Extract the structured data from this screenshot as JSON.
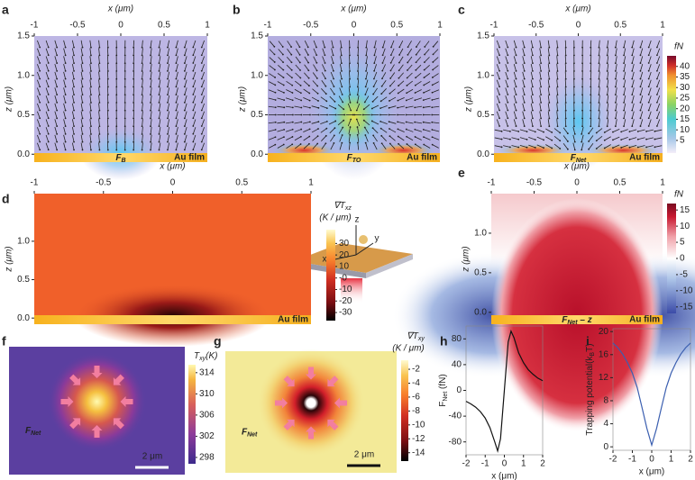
{
  "chart_data": [
    {
      "type": "heatmap",
      "label": "a",
      "xlabel": "x (μm)",
      "xlim": [
        -1,
        1
      ],
      "xticks": [
        -1,
        -0.5,
        0,
        0.5,
        1
      ],
      "ylabel": "z (μm)",
      "ylim": [
        -0.1,
        1.5
      ],
      "yticks": [
        {
          "value": 0,
          "label": "0.0"
        },
        0.5,
        {
          "value": 1,
          "label": "1.0"
        },
        1.5
      ],
      "annotation": {
        "main": "F",
        "sub": "B"
      },
      "film": "Au film"
    },
    {
      "type": "heatmap",
      "label": "b",
      "xlabel": "x (μm)",
      "xlim": [
        -1,
        1
      ],
      "xticks": [
        -1,
        -0.5,
        0,
        0.5,
        1
      ],
      "ylabel": "z (μm)",
      "ylim": [
        -0.1,
        1.5
      ],
      "yticks": [
        {
          "value": 0,
          "label": "0.0"
        },
        0.5,
        {
          "value": 1,
          "label": "1.0"
        },
        1.5
      ],
      "annotation": {
        "main": "F",
        "sub": "TO"
      },
      "film": "Au film"
    },
    {
      "type": "heatmap",
      "label": "c",
      "xlabel": "x (μm)",
      "xlim": [
        -1,
        1
      ],
      "xticks": [
        -1,
        -0.5,
        0,
        0.5,
        1
      ],
      "ylabel": "z (μm)",
      "ylim": [
        -0.1,
        1.5
      ],
      "yticks": [
        {
          "value": 0,
          "label": "0.0"
        },
        0.5,
        {
          "value": 1,
          "label": "1.0"
        },
        1.5
      ],
      "annotation": {
        "main": "F",
        "sub": "Net"
      },
      "film": "Au film",
      "clabel": "fN",
      "clim": [
        -1,
        45
      ],
      "cticks": [
        5,
        10,
        15,
        20,
        25,
        30,
        35,
        40
      ]
    },
    {
      "type": "heatmap",
      "label": "d",
      "xlabel": "x (μm)",
      "xlim": [
        -1,
        1
      ],
      "xticks": [
        -1,
        -0.5,
        0,
        0.5,
        1
      ],
      "ylabel": "z (μm)",
      "ylim": [
        -0.08,
        1.62
      ],
      "yticks": [
        {
          "value": 0,
          "label": "0.0"
        },
        0.5,
        {
          "value": 1,
          "label": "1.0"
        }
      ],
      "film": "Au film",
      "clabel": {
        "main": "∇T",
        "sub": "xz"
      },
      "cunit": "(K / μm)",
      "clim": [
        -37,
        42
      ],
      "cticks": [
        30,
        20,
        10,
        {
          "value": 0,
          "label": "-0"
        },
        -10,
        -20,
        -30
      ]
    },
    {
      "type": "diagram",
      "axes": [
        "z",
        "x",
        "y"
      ]
    },
    {
      "type": "heatmap",
      "label": "e",
      "xlabel": "x (μm)",
      "xlim": [
        -1,
        1
      ],
      "xticks": [
        -1,
        -0.5,
        0,
        0.5,
        1
      ],
      "ylabel": "z (μm)",
      "ylim": [
        -0.15,
        1.5
      ],
      "yticks": [
        {
          "value": 0,
          "label": "0.0"
        },
        0.5,
        {
          "value": 1,
          "label": "1.0"
        }
      ],
      "annotation": {
        "main": "F",
        "sub": "Net",
        "tail": " – z"
      },
      "film": "Au film",
      "clabel": "fN",
      "clim": [
        -17,
        17
      ],
      "cticks": [
        15,
        10,
        5,
        0,
        -5,
        -10,
        -15
      ]
    },
    {
      "type": "heatmap",
      "label": "f",
      "annotation": {
        "main": "F",
        "sub": "Net"
      },
      "scalebar": "2 μm",
      "clabel": {
        "main": "T",
        "sub": "xy",
        "tail": "(K)"
      },
      "clim": [
        296.8,
        315.5
      ],
      "cticks": [
        314,
        310,
        306,
        302,
        298
      ]
    },
    {
      "type": "heatmap",
      "label": "g",
      "annotation": {
        "main": "F",
        "sub": "Net"
      },
      "scalebar": "2 μm",
      "clabel": {
        "main": "∇T",
        "sub": "xy"
      },
      "cunit": "(K / μm)",
      "clim": [
        -15.2,
        -0.7
      ],
      "cticks": [
        -2,
        -4,
        -6,
        -8,
        -10,
        -12,
        -14
      ]
    },
    {
      "type": "line",
      "label": "h",
      "xlabel": "x (μm)",
      "ylabel": {
        "main": "F",
        "sub": "Net",
        "tail": " (fN)"
      },
      "xlim": [
        -2,
        2
      ],
      "xticks": [
        -2,
        -1,
        0,
        1,
        2
      ],
      "ylim": [
        -100,
        100
      ],
      "yticks": [
        -80,
        -40,
        0,
        40,
        80
      ],
      "color": "#111111",
      "x": [
        -2,
        -1.75,
        -1.5,
        -1.25,
        -1,
        -0.75,
        -0.5,
        -0.35,
        -0.2,
        0,
        0.2,
        0.35,
        0.5,
        0.75,
        1,
        1.25,
        1.5,
        1.75,
        2
      ],
      "values": [
        -17,
        -21,
        -26,
        -33,
        -43,
        -58,
        -80,
        -94,
        -75,
        0,
        75,
        92,
        82,
        58,
        43,
        32,
        25,
        19,
        15
      ]
    },
    {
      "type": "line",
      "label": "i",
      "xlabel": "x (μm)",
      "ylabel": {
        "main": "Trapping potential(k",
        "sub": "B",
        "tail": "T)"
      },
      "xlim": [
        -2,
        2
      ],
      "xticks": [
        -2,
        -1,
        0,
        1,
        2
      ],
      "ylim": [
        -0.6,
        20.5
      ],
      "yticks": [
        0,
        4,
        8,
        12,
        16,
        20
      ],
      "color": "#3b5fb0",
      "x": [
        -2,
        -1.75,
        -1.5,
        -1.25,
        -1,
        -0.75,
        -0.5,
        -0.25,
        0,
        0.25,
        0.5,
        0.75,
        1,
        1.25,
        1.5,
        1.75,
        2
      ],
      "values": [
        18,
        17.2,
        16.1,
        14.6,
        12.8,
        10.3,
        6.8,
        3.2,
        0.3,
        3.2,
        6.8,
        10.3,
        12.8,
        14.6,
        16.1,
        17.2,
        18
      ]
    }
  ]
}
